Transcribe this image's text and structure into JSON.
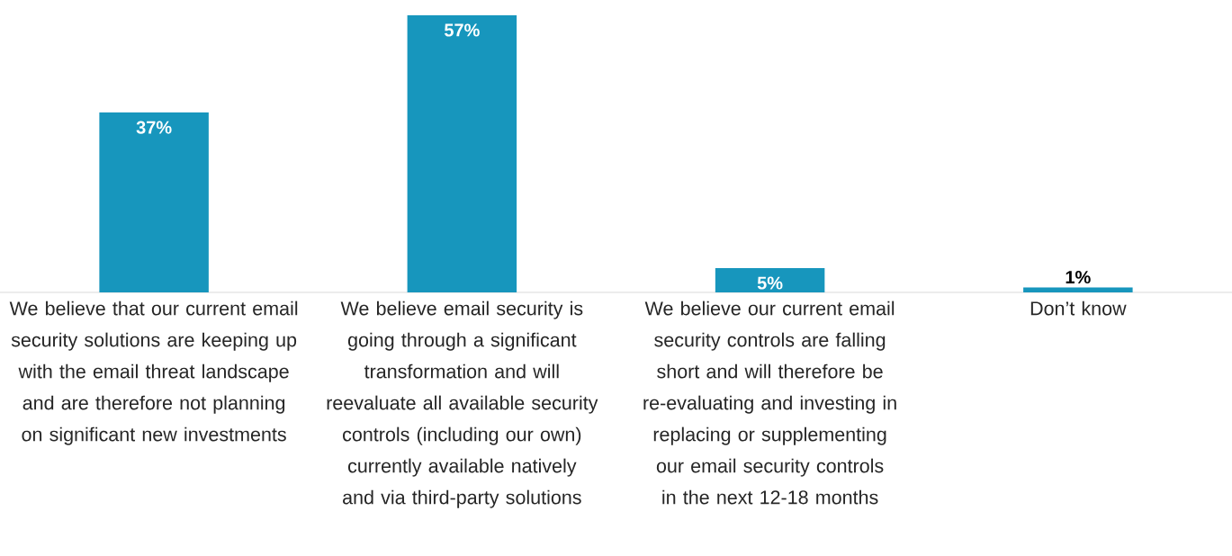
{
  "chart_data": {
    "type": "bar",
    "categories": [
      "We believe that our current email security solutions are keeping up with the email threat landscape and are therefore not planning on significant new investments",
      "We believe email security is going through a significant transformation and will reevaluate all available security controls (including our own) currently available natively and via third-party solutions",
      "We believe our current email security controls are falling short and will therefore be re-evaluating and investing in replacing or supplementing our email security controls in the next 12-18 months",
      "Don’t know"
    ],
    "values": [
      37,
      57,
      5,
      1
    ],
    "value_labels": [
      "37%",
      "57%",
      "5%",
      "1%"
    ],
    "color": "#1796bd"
  }
}
